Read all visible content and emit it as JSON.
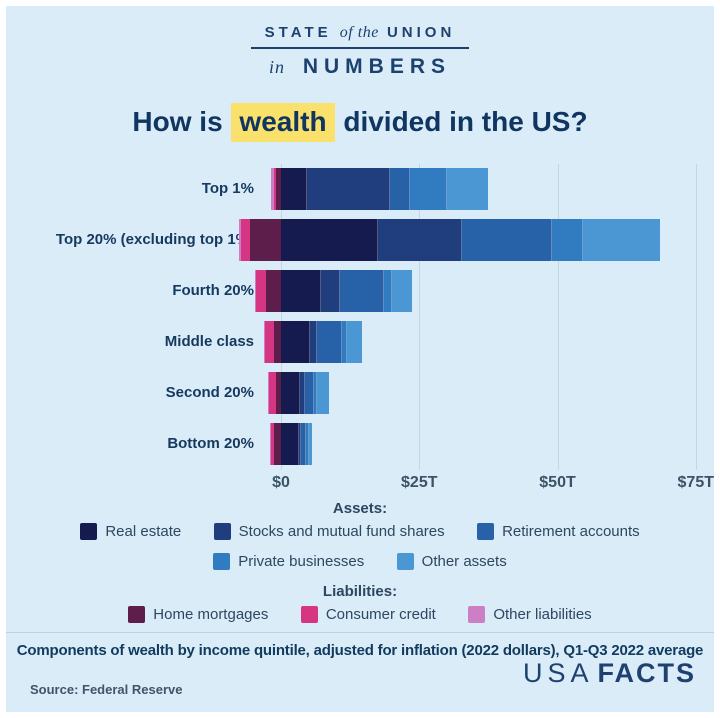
{
  "masthead": {
    "line1_a": "STATE",
    "line1_b": "of the",
    "line1_c": "UNION",
    "line2_a": "in",
    "line2_b": "NUMBERS"
  },
  "title": {
    "prefix": "How is",
    "highlight": "wealth",
    "suffix": "divided in the US?"
  },
  "legend": {
    "assets_heading": "Assets:",
    "liabilities_heading": "Liabilities:"
  },
  "footer": {
    "footnote": "Components of wealth by income quintile, adjusted for inflation (2022 dollars), Q1-Q3 2022 average",
    "source": "Source: Federal Reserve",
    "logo_usa": "USA",
    "logo_facts": "FACTS"
  },
  "colors": {
    "background": "#d9ecf8",
    "navy_text": "#0f3560",
    "highlight_yellow": "#fae16b",
    "gridline": "#c4d6e2"
  },
  "chart_data": {
    "type": "bar",
    "orientation": "horizontal",
    "unit": "trillions of 2022 dollars",
    "title": "How is wealth divided in the US?",
    "xlabel": "",
    "ylabel": "",
    "xlim": [
      -8.5,
      78
    ],
    "grid": true,
    "x_axis": {
      "ticks": [
        "$0",
        "$25T",
        "$50T",
        "$75T"
      ],
      "tick_values": [
        0,
        25,
        50,
        75
      ]
    },
    "categories": [
      "Top 1%",
      "Top 20% (excluding top 1%)",
      "Fourth 20%",
      "Middle class",
      "Second 20%",
      "Bottom 20%"
    ],
    "asset_series": [
      {
        "name": "Real estate",
        "color": "#151b4e",
        "values": [
          4.7,
          17.5,
          7.2,
          5.2,
          3.4,
          3.2
        ]
      },
      {
        "name": "Stocks and mutual fund shares",
        "color": "#203e7e",
        "values": [
          15.0,
          15.2,
          3.4,
          1.3,
          0.9,
          0.5
        ]
      },
      {
        "name": "Retirement accounts",
        "color": "#2762a9",
        "values": [
          3.6,
          16.3,
          8.1,
          4.5,
          1.6,
          0.9
        ]
      },
      {
        "name": "Private businesses",
        "color": "#317bc0",
        "values": [
          6.7,
          5.6,
          1.4,
          0.9,
          0.7,
          0.4
        ]
      },
      {
        "name": "Other assets",
        "color": "#4b97d4",
        "values": [
          7.5,
          13.9,
          3.6,
          2.7,
          2.0,
          0.6
        ]
      }
    ],
    "liability_series": [
      {
        "name": "Home mortgages",
        "color": "#5e1e4b",
        "values": [
          0.9,
          5.6,
          2.7,
          1.3,
          0.9,
          1.2
        ]
      },
      {
        "name": "Consumer credit",
        "color": "#d63583",
        "values": [
          0.3,
          1.6,
          1.8,
          1.6,
          1.3,
          0.6
        ]
      },
      {
        "name": "Other liabilities",
        "color": "#cd7fc5",
        "values": [
          0.6,
          0.4,
          0.2,
          0.2,
          0.2,
          0.1
        ]
      }
    ],
    "legend_position": "bottom",
    "note": "Liabilities are plotted leftward from $0; assets stack rightward from $0."
  }
}
